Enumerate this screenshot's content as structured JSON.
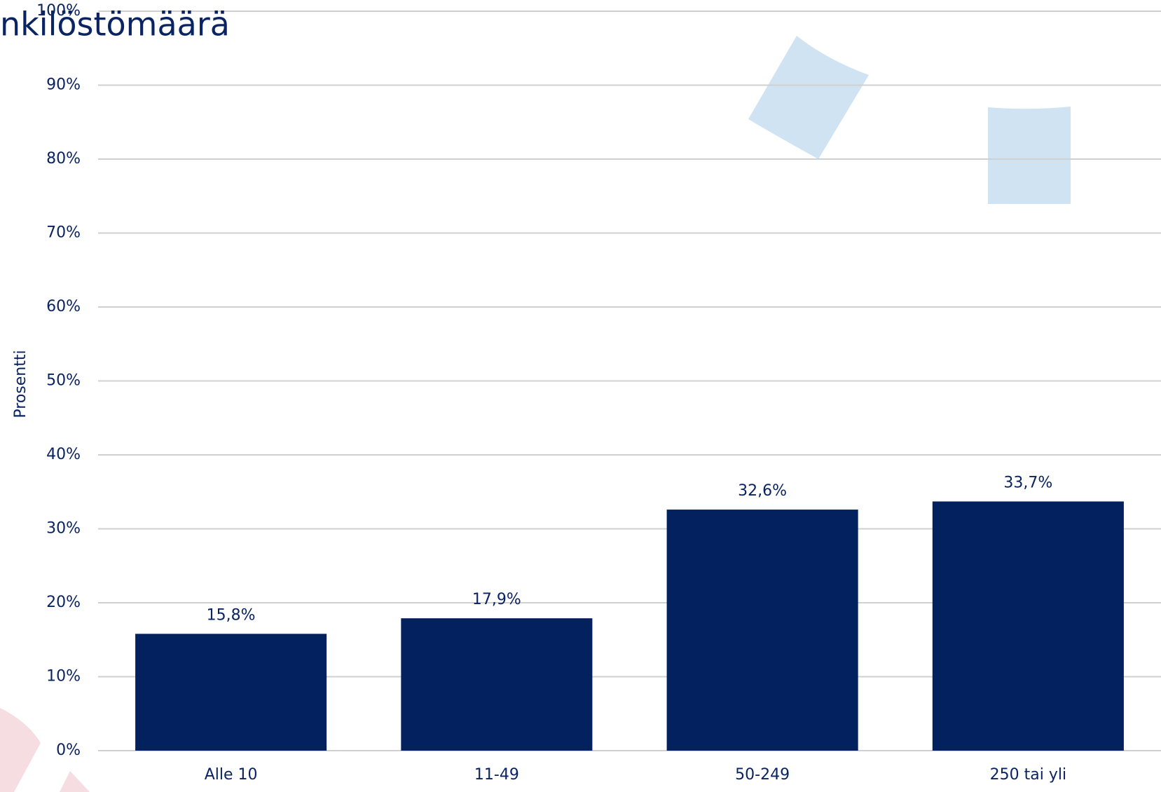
{
  "chart_data": {
    "type": "bar",
    "title": "nkilöstömäärä",
    "y_label": "Prosentti",
    "categories": [
      "Alle 10",
      "11-49",
      "50-249",
      "250 tai yli"
    ],
    "values": [
      15.8,
      17.9,
      32.6,
      33.7
    ],
    "value_labels": [
      "15,8%",
      "17,9%",
      "32,6%",
      "33,7%"
    ],
    "color": "#03215f",
    "ylim": [
      0,
      100
    ],
    "yticks": [
      {
        "value": 0,
        "label": "0%"
      },
      {
        "value": 10,
        "label": "10%"
      },
      {
        "value": 20,
        "label": "20%"
      },
      {
        "value": 30,
        "label": "30%"
      },
      {
        "value": 40,
        "label": "40%"
      },
      {
        "value": 50,
        "label": "50%"
      },
      {
        "value": 60,
        "label": "60%"
      },
      {
        "value": 70,
        "label": "70%"
      },
      {
        "value": 80,
        "label": "80%"
      },
      {
        "value": 90,
        "label": "90%"
      },
      {
        "value": 100,
        "label": "100%"
      }
    ],
    "grid": true
  }
}
